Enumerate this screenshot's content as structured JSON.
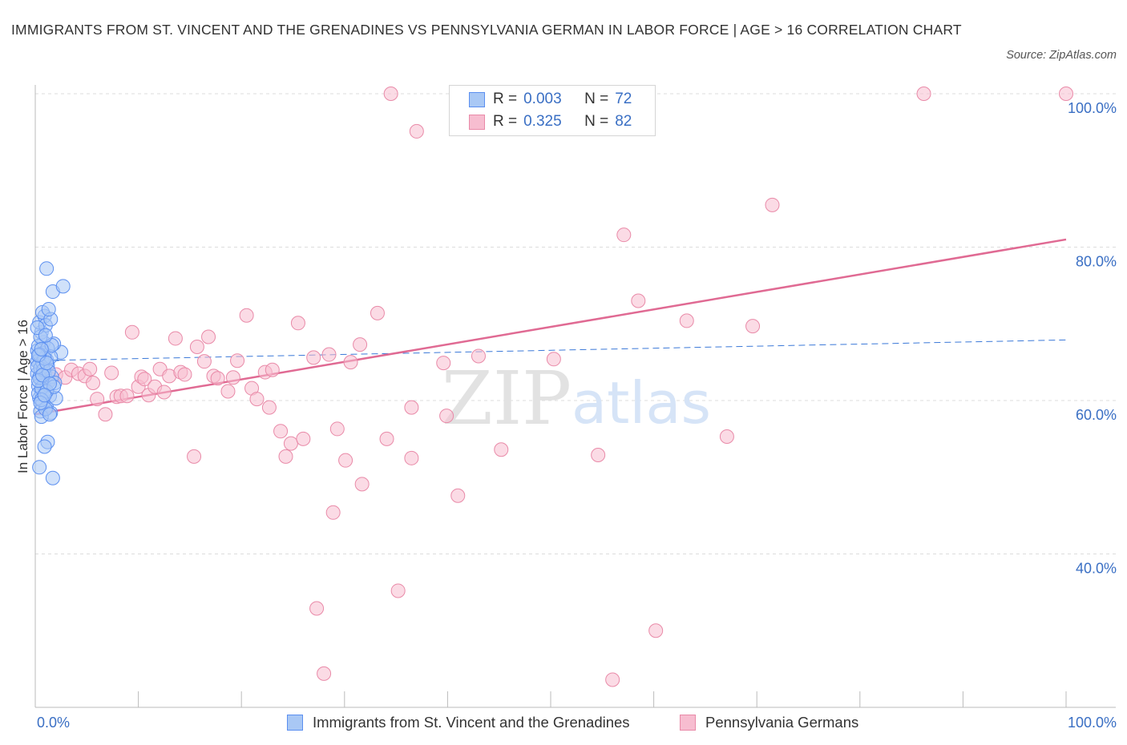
{
  "title": "IMMIGRANTS FROM ST. VINCENT AND THE GRENADINES VS PENNSYLVANIA GERMAN IN LABOR FORCE | AGE > 16 CORRELATION CHART",
  "source": "Source: ZipAtlas.com",
  "watermark": {
    "zip": "ZIP",
    "atlas": "atlas"
  },
  "legend": {
    "rows": [
      {
        "r_label": "R =",
        "r_value": "0.003",
        "n_label": "N =",
        "n_value": "72",
        "color": "#5b8ff0"
      },
      {
        "r_label": "R =",
        "r_value": "0.325",
        "n_label": "N =",
        "n_value": "82",
        "color": "#f08fb0"
      }
    ]
  },
  "colors": {
    "blue_fill": "#a9c8f5",
    "blue_stroke": "#5b8ff0",
    "blue_line": "#3a78d8",
    "pink_fill": "#f7bdd0",
    "pink_stroke": "#e98aa8",
    "pink_line": "#e06a93",
    "grid": "#dddddd",
    "axis_label": "#3a6fc4"
  },
  "chart_data": {
    "type": "scatter",
    "title": "IMMIGRANTS FROM ST. VINCENT AND THE GRENADINES VS PENNSYLVANIA GERMAN IN LABOR FORCE | AGE > 16 CORRELATION CHART",
    "xlabel": "",
    "ylabel": "In Labor Force | Age > 16",
    "xlim": [
      0,
      100
    ],
    "ylim": [
      20,
      100
    ],
    "x_tick_labels": [
      "0.0%",
      "100.0%"
    ],
    "y_ticks": [
      40,
      60,
      80,
      100
    ],
    "y_tick_labels": [
      "40.0%",
      "60.0%",
      "80.0%",
      "100.0%"
    ],
    "grid": true,
    "legend_placement": "top-center",
    "series": [
      {
        "name": "Immigrants from St. Vincent and the Grenadines",
        "color": "#5b8ff0",
        "trend": {
          "x": [
            0,
            100
          ],
          "y": [
            65.2,
            67.9
          ]
        },
        "points": [
          [
            0.2,
            66.5
          ],
          [
            0.3,
            65.8
          ],
          [
            0.4,
            64.8
          ],
          [
            0.2,
            63.5
          ],
          [
            0.5,
            62.8
          ],
          [
            0.3,
            61.9
          ],
          [
            0.6,
            61.0
          ],
          [
            0.4,
            60.3
          ],
          [
            0.7,
            59.5
          ],
          [
            0.5,
            58.6
          ],
          [
            0.8,
            67.6
          ],
          [
            0.6,
            68.9
          ],
          [
            0.4,
            70.2
          ],
          [
            0.9,
            71.0
          ],
          [
            0.7,
            71.5
          ],
          [
            1.0,
            69.8
          ],
          [
            0.3,
            67.1
          ],
          [
            0.8,
            66.2
          ],
          [
            1.1,
            65.3
          ],
          [
            1.2,
            64.6
          ],
          [
            0.9,
            63.7
          ],
          [
            1.3,
            62.5
          ],
          [
            1.0,
            61.4
          ],
          [
            1.4,
            60.6
          ],
          [
            1.1,
            59.1
          ],
          [
            1.5,
            58.4
          ],
          [
            0.6,
            57.9
          ],
          [
            1.2,
            54.6
          ],
          [
            0.4,
            51.3
          ],
          [
            1.7,
            49.9
          ],
          [
            1.1,
            77.2
          ],
          [
            1.7,
            74.2
          ],
          [
            2.7,
            74.9
          ],
          [
            2.5,
            66.3
          ],
          [
            1.8,
            67.4
          ],
          [
            1.5,
            70.6
          ],
          [
            1.3,
            71.9
          ],
          [
            0.2,
            65.1
          ],
          [
            0.5,
            64.2
          ],
          [
            0.8,
            62.0
          ],
          [
            1.6,
            63.1
          ],
          [
            1.9,
            62.3
          ],
          [
            2.0,
            60.3
          ],
          [
            0.3,
            60.9
          ],
          [
            0.6,
            61.6
          ],
          [
            1.0,
            58.9
          ],
          [
            1.4,
            58.2
          ],
          [
            0.9,
            54.0
          ],
          [
            0.5,
            68.3
          ],
          [
            0.2,
            69.5
          ],
          [
            0.7,
            65.0
          ],
          [
            1.2,
            66.8
          ],
          [
            0.4,
            63.0
          ],
          [
            1.5,
            65.7
          ],
          [
            0.8,
            64.0
          ],
          [
            0.3,
            62.6
          ],
          [
            1.1,
            61.2
          ],
          [
            0.6,
            60.1
          ],
          [
            1.3,
            63.8
          ],
          [
            0.2,
            64.4
          ],
          [
            0.9,
            65.5
          ],
          [
            1.6,
            67.2
          ],
          [
            0.4,
            66.0
          ],
          [
            1.0,
            68.5
          ],
          [
            0.5,
            59.7
          ],
          [
            1.8,
            61.8
          ],
          [
            0.7,
            63.3
          ],
          [
            1.4,
            62.2
          ],
          [
            0.3,
            65.9
          ],
          [
            1.1,
            64.9
          ],
          [
            0.6,
            66.7
          ],
          [
            0.9,
            60.7
          ]
        ]
      },
      {
        "name": "Pennsylvania Germans",
        "color": "#f08fb0",
        "trend": {
          "x": [
            0,
            100
          ],
          "y": [
            58.2,
            81.0
          ]
        },
        "points": [
          [
            1.5,
            62.8
          ],
          [
            2.0,
            63.4
          ],
          [
            2.9,
            63.0
          ],
          [
            3.5,
            64.0
          ],
          [
            4.2,
            63.5
          ],
          [
            4.8,
            63.2
          ],
          [
            5.3,
            64.1
          ],
          [
            5.6,
            62.3
          ],
          [
            6.0,
            60.2
          ],
          [
            6.8,
            58.2
          ],
          [
            7.4,
            63.6
          ],
          [
            7.9,
            60.5
          ],
          [
            8.3,
            60.6
          ],
          [
            8.9,
            60.6
          ],
          [
            9.4,
            68.9
          ],
          [
            10.0,
            61.8
          ],
          [
            10.3,
            63.1
          ],
          [
            10.6,
            62.8
          ],
          [
            11.0,
            60.7
          ],
          [
            11.6,
            61.8
          ],
          [
            12.1,
            64.1
          ],
          [
            12.5,
            61.1
          ],
          [
            13.0,
            63.2
          ],
          [
            13.6,
            68.1
          ],
          [
            14.1,
            63.7
          ],
          [
            14.5,
            63.4
          ],
          [
            15.7,
            67.0
          ],
          [
            15.4,
            52.7
          ],
          [
            16.4,
            65.1
          ],
          [
            16.8,
            68.3
          ],
          [
            17.3,
            63.2
          ],
          [
            17.7,
            62.9
          ],
          [
            18.7,
            61.2
          ],
          [
            19.2,
            63.0
          ],
          [
            19.6,
            65.2
          ],
          [
            20.5,
            71.1
          ],
          [
            21.0,
            61.6
          ],
          [
            21.5,
            60.2
          ],
          [
            22.3,
            63.7
          ],
          [
            23.0,
            64.0
          ],
          [
            22.7,
            59.1
          ],
          [
            23.8,
            56.0
          ],
          [
            24.3,
            52.7
          ],
          [
            24.8,
            54.4
          ],
          [
            25.5,
            70.1
          ],
          [
            27.0,
            65.6
          ],
          [
            27.3,
            32.9
          ],
          [
            28.0,
            24.4
          ],
          [
            28.5,
            66.0
          ],
          [
            28.9,
            45.4
          ],
          [
            29.3,
            56.3
          ],
          [
            30.1,
            52.2
          ],
          [
            30.6,
            65.0
          ],
          [
            31.5,
            67.3
          ],
          [
            31.7,
            49.1
          ],
          [
            33.2,
            71.4
          ],
          [
            34.1,
            55.0
          ],
          [
            34.5,
            100.0
          ],
          [
            35.2,
            35.2
          ],
          [
            36.5,
            52.5
          ],
          [
            37.0,
            95.1
          ],
          [
            39.6,
            64.9
          ],
          [
            39.9,
            58.0
          ],
          [
            41.0,
            47.6
          ],
          [
            45.2,
            53.6
          ],
          [
            47.0,
            95.5
          ],
          [
            50.0,
            100.0
          ],
          [
            50.3,
            65.4
          ],
          [
            54.6,
            52.9
          ],
          [
            56.0,
            23.6
          ],
          [
            57.1,
            81.6
          ],
          [
            58.5,
            73.0
          ],
          [
            60.2,
            30.0
          ],
          [
            63.2,
            70.4
          ],
          [
            67.1,
            55.3
          ],
          [
            69.6,
            69.7
          ],
          [
            71.5,
            85.5
          ],
          [
            86.2,
            100.0
          ],
          [
            100.0,
            100.0
          ],
          [
            36.5,
            59.1
          ],
          [
            43.0,
            65.8
          ],
          [
            26.0,
            55.0
          ]
        ]
      }
    ]
  }
}
